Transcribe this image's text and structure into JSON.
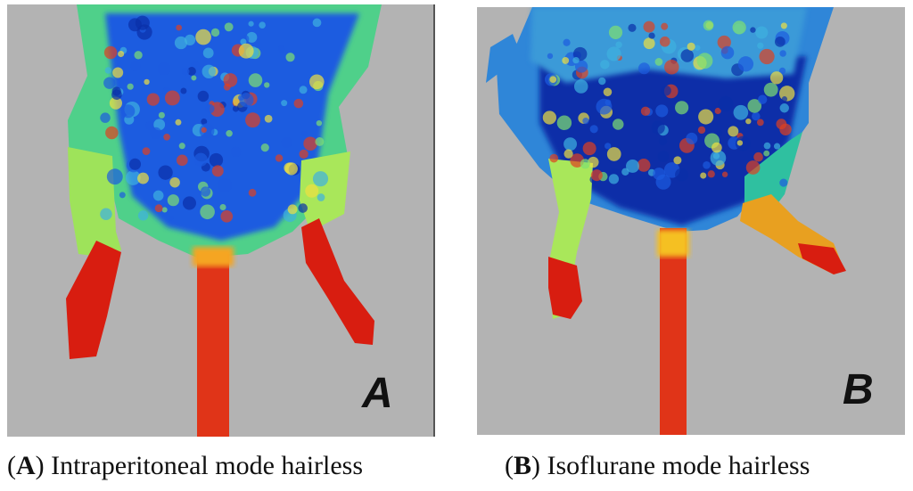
{
  "panels": [
    {
      "letter": "A",
      "caption": {
        "open": "(",
        "label": "A",
        "text": ") Intraperitoneal mode hairless"
      }
    },
    {
      "letter": "B",
      "caption": {
        "open": "(",
        "label": "B",
        "text": ") Isoflurane mode hairless"
      }
    }
  ]
}
